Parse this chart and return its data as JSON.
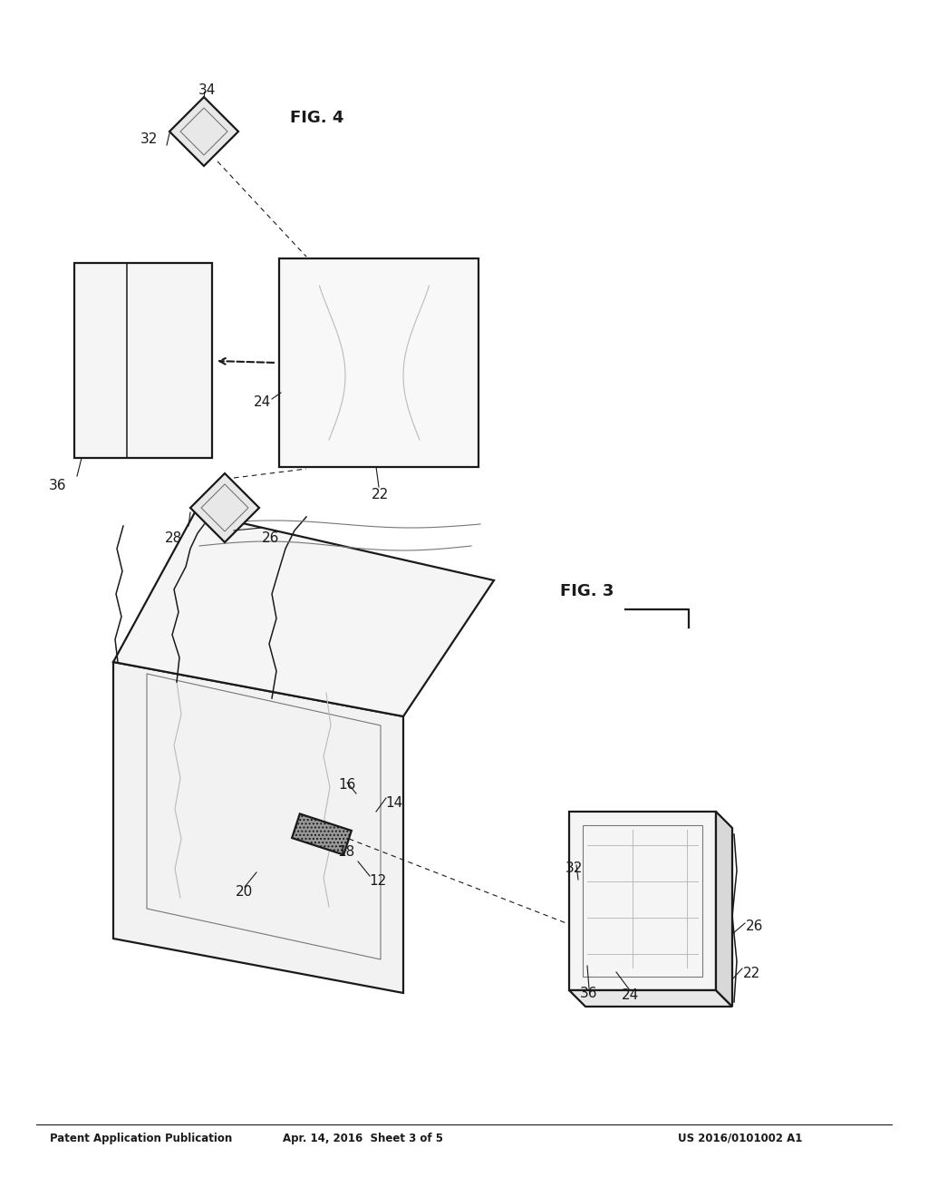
{
  "bg_color": "#ffffff",
  "line_color": "#1a1a1a",
  "light_color": "#bbbbbb",
  "mid_color": "#777777",
  "header_left": "Patent Application Publication",
  "header_center": "Apr. 14, 2016  Sheet 3 of 5",
  "header_right": "US 2016/0101002 A1",
  "fig3_label": "FIG. 3",
  "fig4_label": "FIG. 4"
}
